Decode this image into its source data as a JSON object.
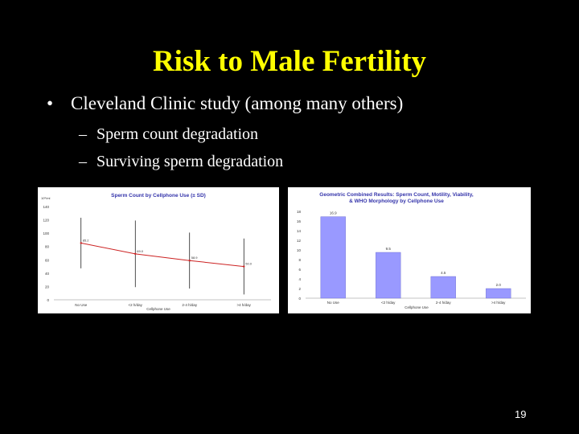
{
  "slide": {
    "title": "Risk to Male Fertility",
    "bullet_symbol": "•",
    "bullet": "Cleveland Clinic study (among many others)",
    "dash_symbol": "–",
    "sub_bullets": [
      "Sperm count degradation",
      "Surviving sperm degradation"
    ],
    "page_number": "19"
  },
  "chart_data": [
    {
      "type": "line",
      "title": "Sperm Count by Cellphone Use (± SD)",
      "xlabel": "Cellphone Use",
      "ylabel": "10⁶/ml",
      "categories": [
        "No Use",
        "<2 h/day",
        "2-4 h/day",
        ">4 h/day"
      ],
      "series": [
        {
          "values": [
            85.2,
            69.0,
            58.9,
            50.0
          ]
        }
      ],
      "data_labels": [
        "85.2",
        "69.0",
        "58.9",
        "50.0"
      ],
      "ylim": [
        0,
        140
      ],
      "yticks": [
        "0",
        "20",
        "40",
        "60",
        "80",
        "100",
        "120",
        "140"
      ],
      "grid": false,
      "line_color": "#cc2222",
      "error_bar_color": "#000000"
    },
    {
      "type": "bar",
      "title": "Geometric Combined Results: Sperm Count, Motility, Viability, & WHO Morphology by Cellphone Use",
      "xlabel": "Cellphone Use",
      "categories": [
        "No Use",
        "<2 h/day",
        "2-4 h/day",
        ">4 h/day"
      ],
      "values": [
        16.9,
        9.5,
        4.5,
        2.0
      ],
      "data_labels": [
        "16.9",
        "9.5",
        "4.5",
        "2.0"
      ],
      "ylim": [
        0,
        18
      ],
      "yticks": [
        "0",
        "2",
        "4",
        "6",
        "8",
        "10",
        "12",
        "14",
        "16",
        "18"
      ],
      "grid": false,
      "bar_color": "#9999ff"
    }
  ]
}
